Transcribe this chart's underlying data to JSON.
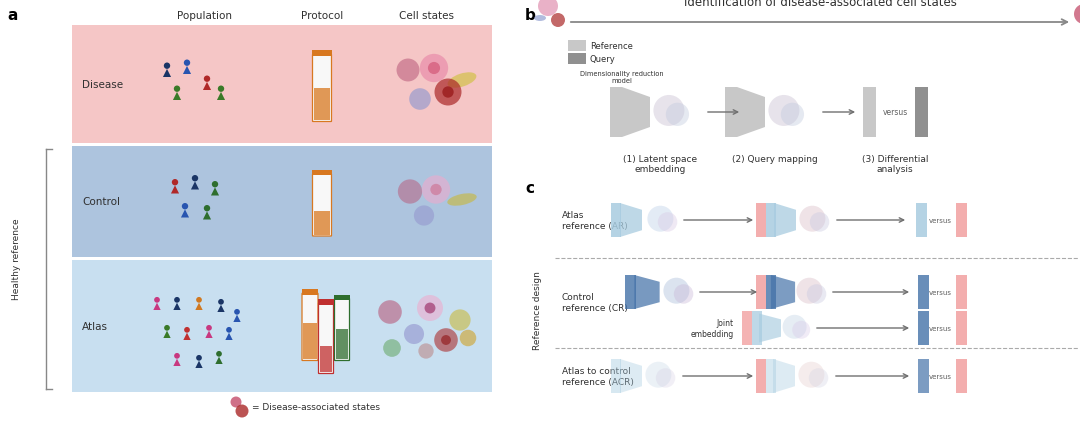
{
  "panel_b_title": "Identification of disease-associated cell states",
  "panel_b_steps": [
    "(1) Latent space\nembedding",
    "(2) Query mapping",
    "(3) Differential\nanalysis"
  ],
  "panel_a_rows": [
    "Disease",
    "Control",
    "Atlas"
  ],
  "panel_a_cols": [
    "Population",
    "Protocol",
    "Cell states"
  ],
  "panel_c_rows": [
    "Atlas\nreference (AR)",
    "Control\nreference (CR)",
    "Atlas to control\nreference (ACR)"
  ],
  "panel_c_label": "Reference design",
  "healthy_reference_label": "Healthy reference",
  "disease_associated_label": "= Disease-associated states",
  "legend_reference": "Reference",
  "legend_query": "Query",
  "joint_embedding_label": "Joint\nembedding",
  "dim_reduction_label": "Dimensionality reduction\nmodel",
  "bg_disease": "#f5c6c6",
  "bg_control": "#adc4de",
  "bg_atlas": "#c8dff0",
  "color_blue_dark": "#4472a8",
  "color_blue_med": "#7cafd4",
  "color_blue_light": "#a8cce0",
  "color_blue_lighter": "#c8dff0",
  "color_pink": "#f2a0a0",
  "color_pink_light": "#f9d0d0",
  "color_gray_ref": "#c8c8c8",
  "color_gray_query": "#909090",
  "color_gray_light": "#d8d8d8",
  "color_orange": "#d87820",
  "text_color": "#303030",
  "arrow_color": "#707070"
}
